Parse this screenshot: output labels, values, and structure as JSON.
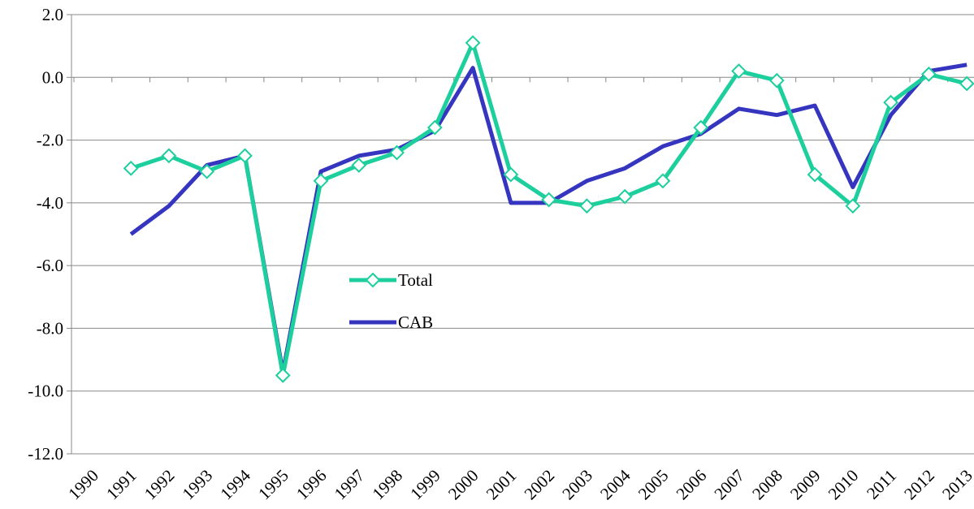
{
  "chart_data": {
    "type": "line",
    "categories": [
      "1990",
      "1991",
      "1992",
      "1993",
      "1994",
      "1995",
      "1996",
      "1997",
      "1998",
      "1999",
      "2000",
      "2001",
      "2002",
      "2003",
      "2004",
      "2005",
      "2006",
      "2007",
      "2008",
      "2009",
      "2010",
      "2011",
      "2012",
      "2013"
    ],
    "series": [
      {
        "name": "Total",
        "color": "#1ccf9c",
        "marker": "diamond",
        "values": [
          null,
          -2.9,
          -2.5,
          -3.0,
          -2.5,
          -9.5,
          -3.3,
          -2.8,
          -2.4,
          -1.6,
          1.1,
          -3.1,
          -3.9,
          -4.1,
          -3.8,
          -3.3,
          -1.6,
          0.2,
          -0.1,
          -3.1,
          -4.1,
          -0.8,
          0.1,
          -0.2
        ]
      },
      {
        "name": "CAB",
        "color": "#3535c0",
        "marker": "none",
        "values": [
          null,
          -5.0,
          -4.1,
          -2.8,
          -2.5,
          -9.4,
          -3.0,
          -2.5,
          -2.3,
          -1.7,
          0.3,
          -4.0,
          -4.0,
          -3.3,
          -2.9,
          -2.2,
          -1.8,
          -1.0,
          -1.2,
          -0.9,
          -3.5,
          -1.2,
          0.2,
          0.4
        ]
      }
    ],
    "ylim": [
      -12,
      2
    ],
    "yticks": [
      {
        "value": -12,
        "label": "-12.0"
      },
      {
        "value": -10,
        "label": "-10.0"
      },
      {
        "value": -8,
        "label": "-8.0"
      },
      {
        "value": -6,
        "label": "-6.0"
      },
      {
        "value": -4,
        "label": "-4.0"
      },
      {
        "value": -2,
        "label": "-2.0"
      },
      {
        "value": 0,
        "label": "0.0"
      },
      {
        "value": 2,
        "label": "2.0"
      }
    ],
    "grid": true,
    "legend": "center"
  }
}
